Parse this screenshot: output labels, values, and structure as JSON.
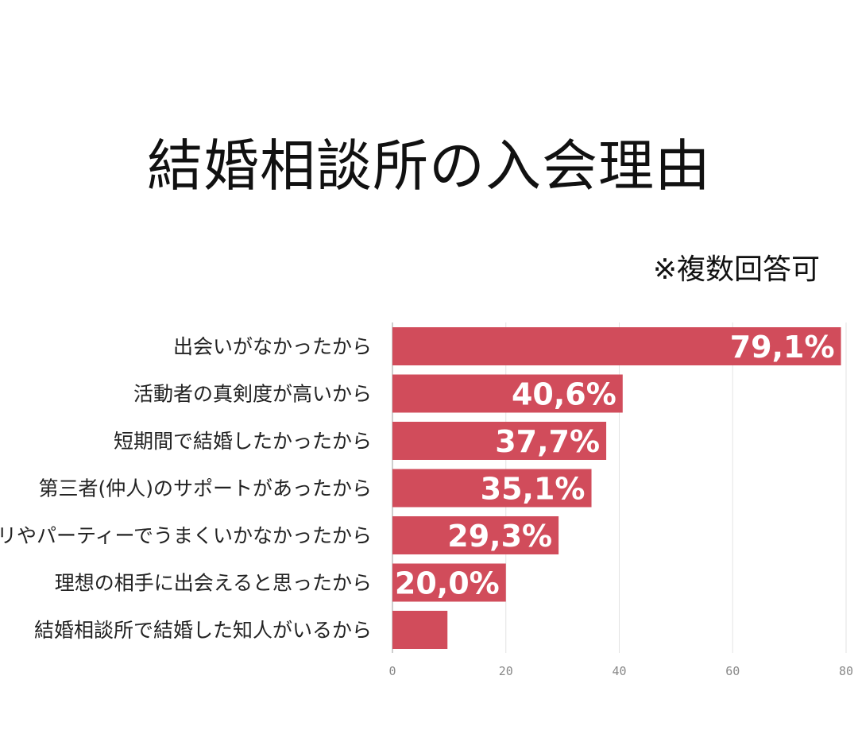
{
  "title": "結婚相談所の入会理由",
  "note": "※複数回答可",
  "colors": {
    "bar": "#d14c5b",
    "grid": "#e3e3e3",
    "axis": "#bdbdbd"
  },
  "chart_data": {
    "type": "bar",
    "orientation": "horizontal",
    "title": "結婚相談所の入会理由",
    "categories": [
      "出会いがなかったから",
      "活動者の真剣度が高いから",
      "短期間で結婚したかったから",
      "第三者(仲人)のサポートがあったから",
      "アプリやパーティーでうまくいかなかったから",
      "理想の相手に出会えると思ったから",
      "結婚相談所で結婚した知人がいるから"
    ],
    "values": [
      79.1,
      40.6,
      37.7,
      35.1,
      29.3,
      20.0,
      9.7
    ],
    "data_labels": [
      "79,1%",
      "40,6%",
      "37,7%",
      "35,1%",
      "29,3%",
      "20,0%",
      ""
    ],
    "xlim": [
      0,
      80
    ],
    "x_ticks": [
      0,
      20,
      40,
      60,
      80
    ],
    "x_tick_labels": [
      "0",
      "20",
      "40",
      "60",
      "80"
    ],
    "grid": true,
    "xlabel": "",
    "ylabel": ""
  }
}
